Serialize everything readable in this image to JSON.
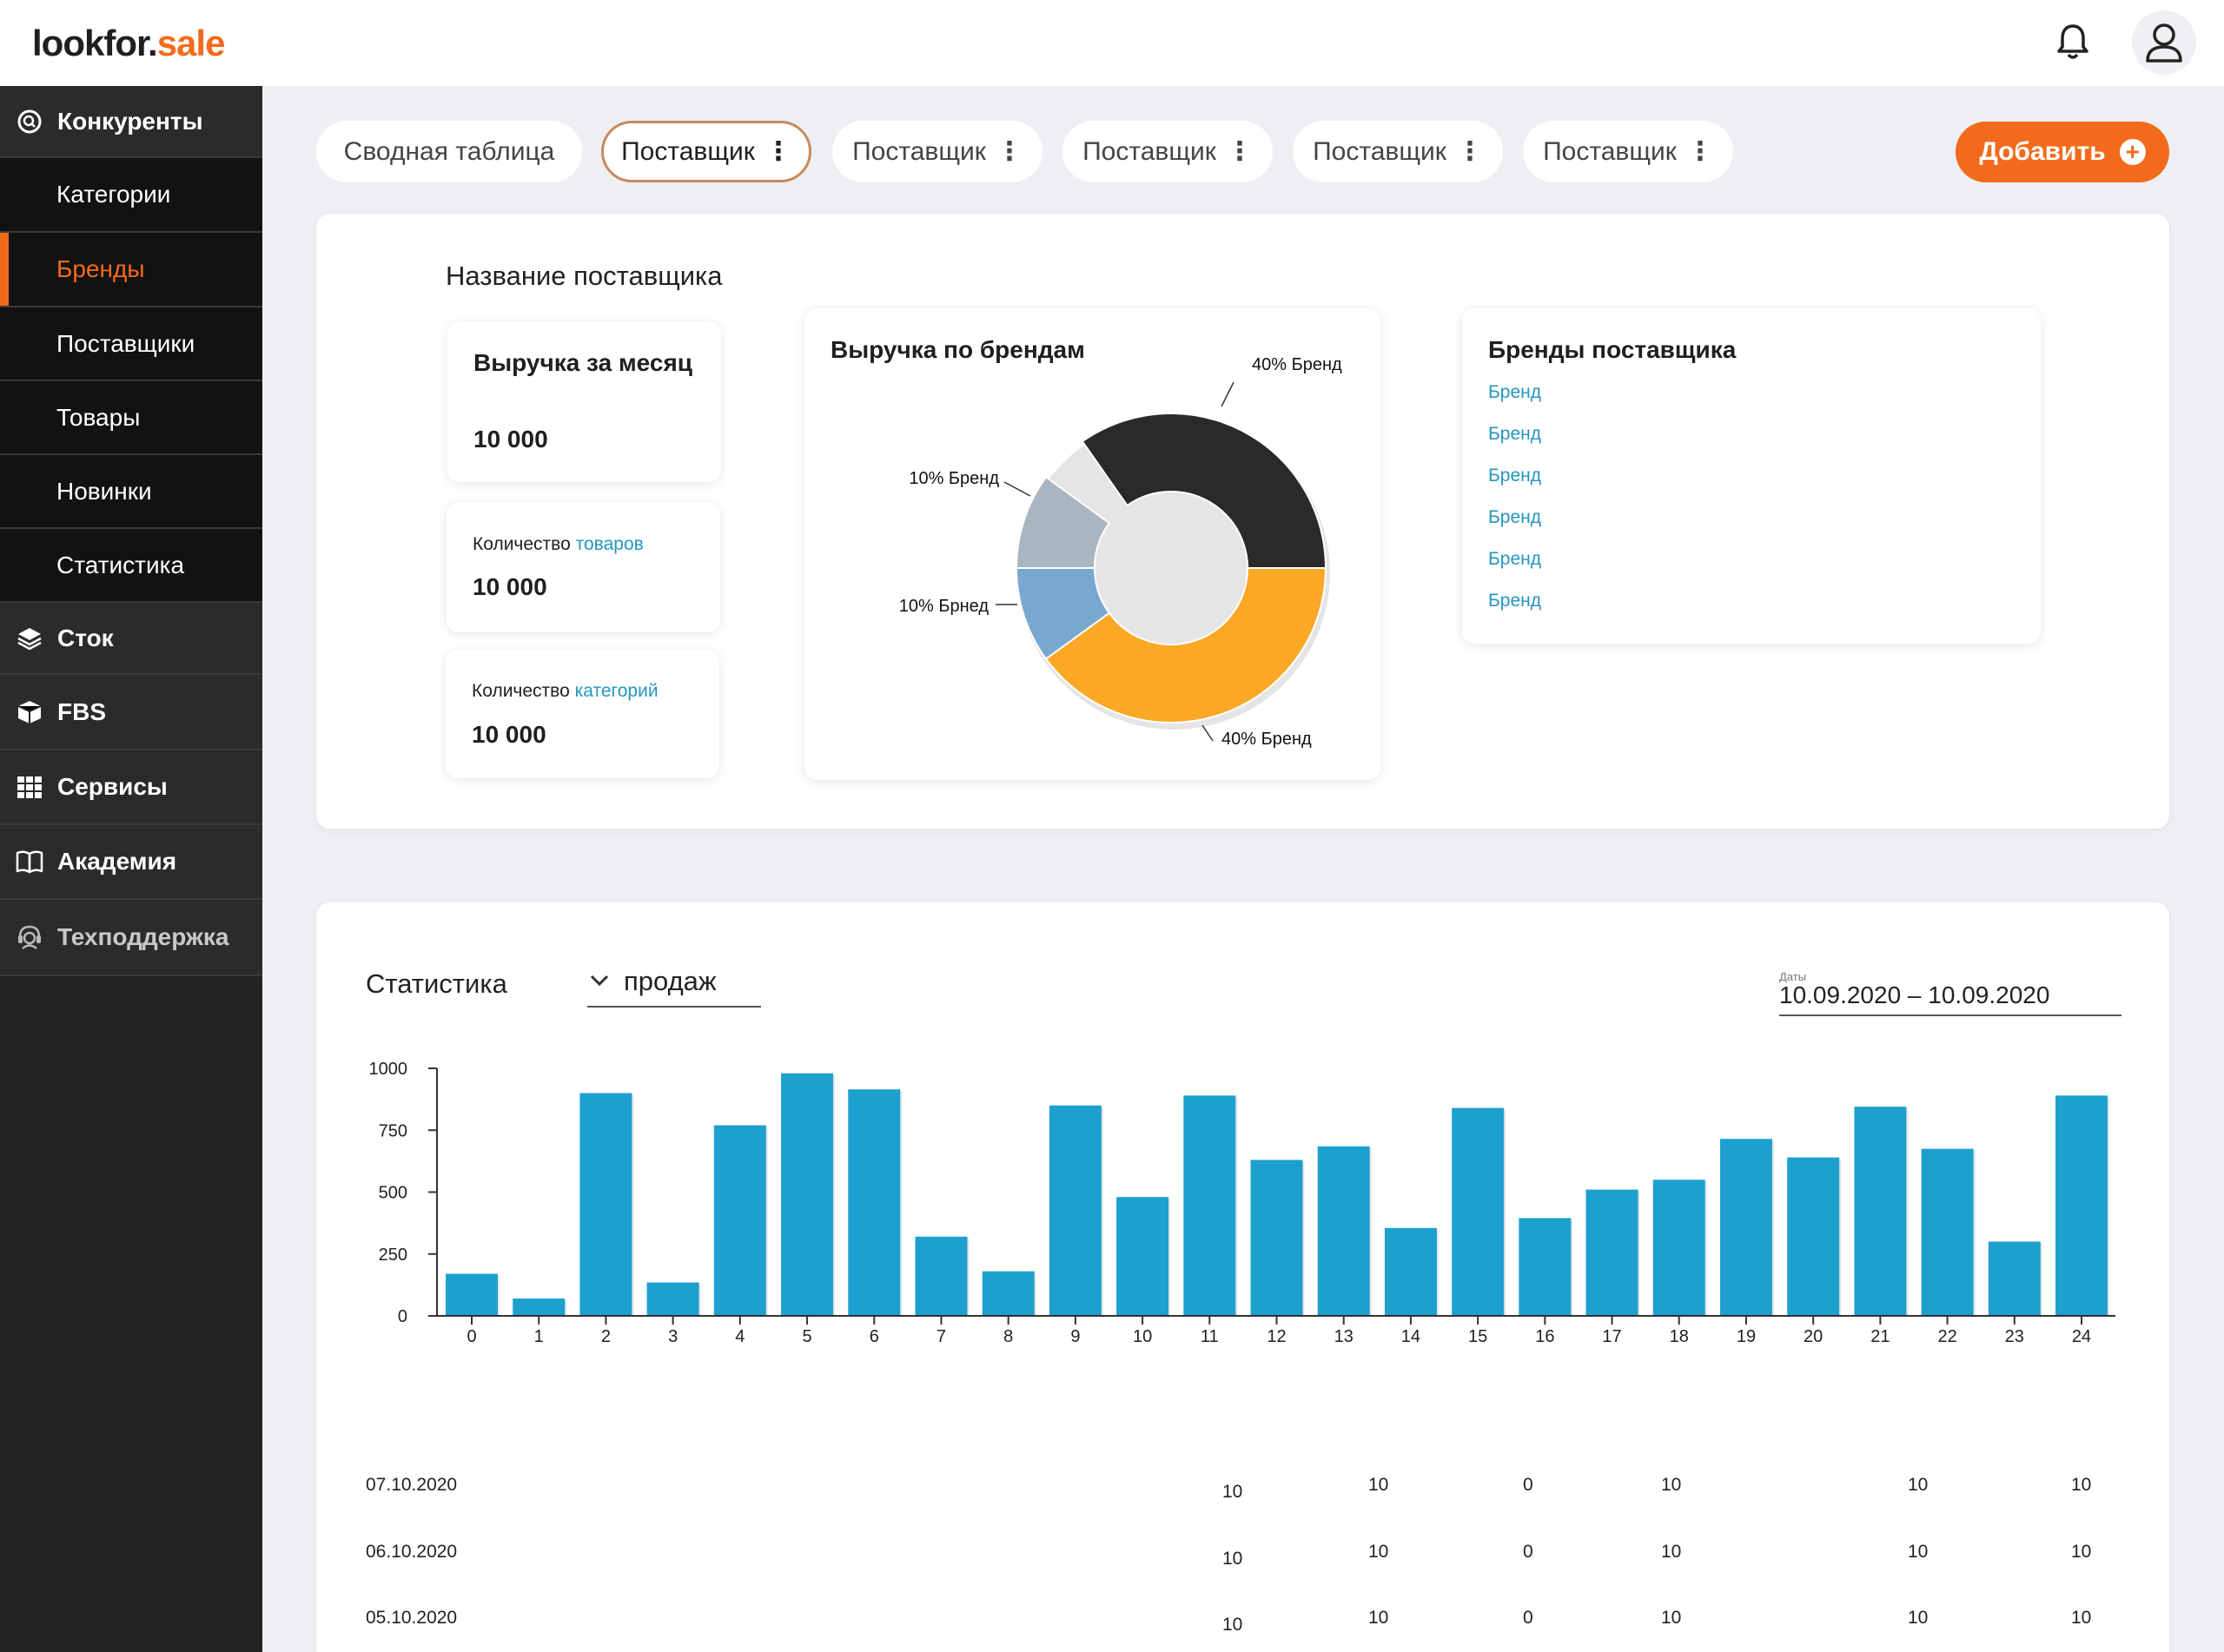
{
  "header": {
    "logo_main": "lookfor.",
    "logo_accent": "sale"
  },
  "sidebar": {
    "items": [
      {
        "label": "Конкуренты",
        "type": "main",
        "icon": "competitors-icon"
      },
      {
        "label": "Категории",
        "type": "sub"
      },
      {
        "label": "Бренды",
        "type": "sub",
        "active": true
      },
      {
        "label": "Поставщики",
        "type": "sub"
      },
      {
        "label": "Товары",
        "type": "sub"
      },
      {
        "label": "Новинки",
        "type": "sub"
      },
      {
        "label": "Статистика",
        "type": "sub"
      },
      {
        "label": "Сток",
        "type": "main",
        "icon": "layers-icon"
      },
      {
        "label": "FBS",
        "type": "main",
        "icon": "box-icon"
      },
      {
        "label": "Сервисы",
        "type": "main",
        "icon": "grid-icon"
      },
      {
        "label": "Академия",
        "type": "main",
        "icon": "book-icon"
      },
      {
        "label": "Техподдержка",
        "type": "main",
        "icon": "support-icon"
      }
    ]
  },
  "tabs": [
    {
      "label": "Сводная таблица",
      "menu": false,
      "active": false
    },
    {
      "label": "Поставщик",
      "menu": true,
      "active": true
    },
    {
      "label": "Поставщик",
      "menu": true,
      "active": false
    },
    {
      "label": "Поставщик",
      "menu": true,
      "active": false
    },
    {
      "label": "Поставщик",
      "menu": true,
      "active": false
    },
    {
      "label": "Поставщик",
      "menu": true,
      "active": false
    }
  ],
  "add_button": {
    "label": "Добавить"
  },
  "summary": {
    "supplier_name": "Название поставщика",
    "revenue_card": {
      "title": "Выручка за месяц",
      "value": "10 000"
    },
    "goods_card": {
      "label": "Количество",
      "link": "товаров",
      "value": "10 000"
    },
    "categories_card": {
      "label": "Количество",
      "link": "категорий",
      "value": "10 000"
    },
    "brands_card": {
      "title": "Бренды поставщика",
      "items": [
        "Бренд",
        "Бренд",
        "Бренд",
        "Бренд",
        "Бренд",
        "Бренд"
      ]
    }
  },
  "pie_chart": {
    "title": "Выручка по брендам",
    "chart_data": {
      "type": "pie",
      "slices": [
        {
          "label": "40% Бренд",
          "value": 40,
          "color": "#2a2a2a"
        },
        {
          "label": "40% Бренд",
          "value": 40,
          "color": "#fba826"
        },
        {
          "label": "10% Брнед",
          "value": 10,
          "color": "#78a8cf"
        },
        {
          "label": "10% Бренд",
          "value": 10,
          "color": "#a8b6c2"
        }
      ]
    }
  },
  "stats": {
    "title": "Статистика",
    "select_value": "продаж",
    "date_label": "Даты",
    "date_range": "10.09.2020 – 10.09.2020",
    "chart_data": {
      "type": "bar",
      "categories": [
        "0",
        "1",
        "2",
        "3",
        "4",
        "5",
        "6",
        "7",
        "8",
        "9",
        "10",
        "11",
        "12",
        "13",
        "14",
        "15",
        "16",
        "17",
        "18",
        "19",
        "20",
        "21",
        "22",
        "23",
        "24"
      ],
      "values": [
        170,
        70,
        900,
        135,
        770,
        980,
        915,
        320,
        180,
        850,
        480,
        890,
        630,
        685,
        355,
        840,
        395,
        510,
        550,
        715,
        640,
        845,
        675,
        300,
        890
      ],
      "yticks": [
        "0",
        "250",
        "500",
        "750",
        "1000"
      ],
      "ylim": [
        0,
        1000
      ],
      "color": "#1ea0cf"
    },
    "table": [
      {
        "date": "07.10.2020",
        "cells": [
          "10",
          "10",
          "0",
          "10",
          "10",
          "10"
        ]
      },
      {
        "date": "06.10.2020",
        "cells": [
          "10",
          "10",
          "0",
          "10",
          "10",
          "10"
        ]
      },
      {
        "date": "05.10.2020",
        "cells": [
          "10",
          "10",
          "0",
          "10",
          "10",
          "10"
        ]
      }
    ]
  }
}
